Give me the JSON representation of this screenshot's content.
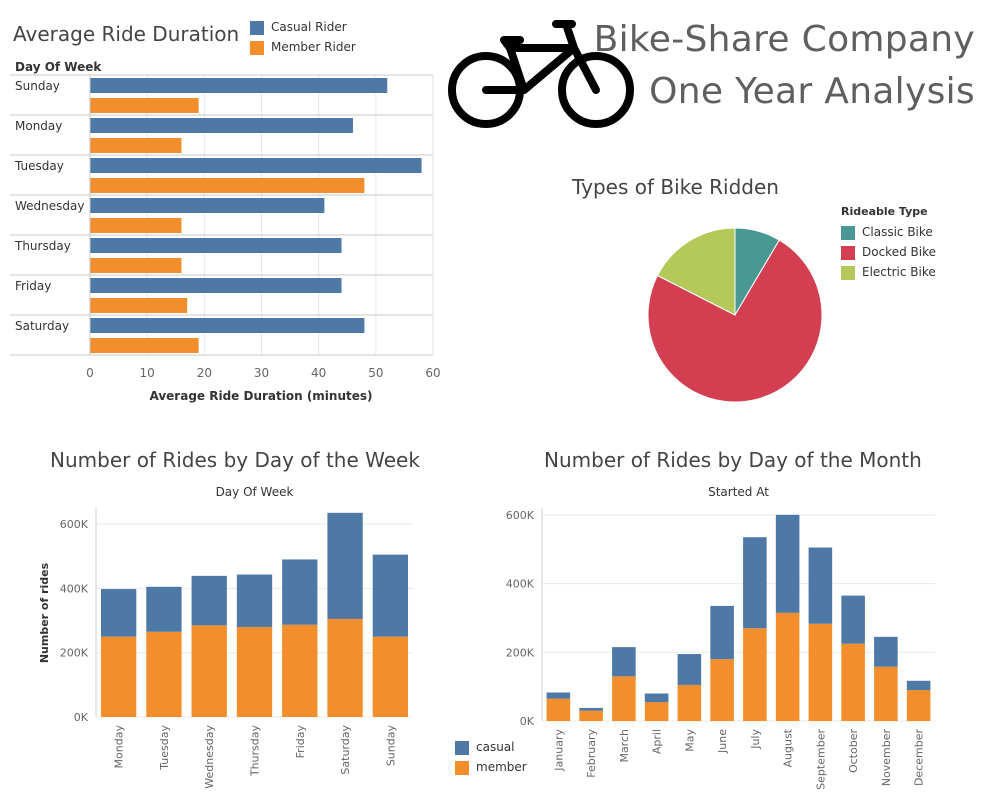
{
  "header": {
    "title_line1": "Bike-Share Company",
    "title_line2": "One Year Analysis"
  },
  "icons": {
    "logo": "bicycle-icon"
  },
  "colors": {
    "casual": "#4e79a7",
    "member": "#f28e2b",
    "classic": "#499894",
    "docked": "#d33f51",
    "electric": "#b5c95a",
    "grid": "#e8e8e8",
    "axis_text": "#666666"
  },
  "chart_data": [
    {
      "id": "avg_duration",
      "type": "bar",
      "orientation": "horizontal",
      "title": "Average Ride Duration",
      "row_header": "Day Of Week",
      "xlabel": "Average Ride Duration (minutes)",
      "categories": [
        "Sunday",
        "Monday",
        "Tuesday",
        "Wednesday",
        "Thursday",
        "Friday",
        "Saturday"
      ],
      "series": [
        {
          "name": "Casual Rider",
          "values": [
            52,
            46,
            58,
            41,
            44,
            44,
            48
          ]
        },
        {
          "name": "Member Rider",
          "values": [
            19,
            16,
            48,
            16,
            16,
            17,
            19
          ]
        }
      ],
      "xlim": [
        0,
        60
      ],
      "ticks": [
        0,
        10,
        20,
        30,
        40,
        50,
        60
      ],
      "legend_position": "top"
    },
    {
      "id": "bike_types",
      "type": "pie",
      "title": "Types of Bike Ridden",
      "legend_title": "Rideable Type",
      "labels": [
        "Classic Bike",
        "Docked Bike",
        "Electric Bike"
      ],
      "values": [
        8.5,
        74,
        17.5
      ],
      "legend_position": "right"
    },
    {
      "id": "rides_by_weekday",
      "type": "bar",
      "stacked": true,
      "title": "Number of Rides by Day of the Week",
      "top_label": "Day Of Week",
      "ylabel": "Number of rides",
      "categories": [
        "Monday",
        "Tuesday",
        "Wednesday",
        "Thursday",
        "Friday",
        "Saturday",
        "Sunday"
      ],
      "series": [
        {
          "name": "member",
          "values": [
            250000,
            265000,
            285000,
            280000,
            287000,
            305000,
            250000
          ]
        },
        {
          "name": "casual",
          "values": [
            148000,
            140000,
            154000,
            163000,
            203000,
            330000,
            255000
          ]
        }
      ],
      "ylim": [
        0,
        650000
      ],
      "ticks": [
        0,
        200000,
        400000,
        600000
      ],
      "tick_labels": [
        "0K",
        "200K",
        "400K",
        "600K"
      ]
    },
    {
      "id": "rides_by_month",
      "type": "bar",
      "stacked": true,
      "title": "Number of Rides by Day of the Month",
      "top_label": "Started At",
      "categories": [
        "January",
        "February",
        "March",
        "April",
        "May",
        "June",
        "July",
        "August",
        "September",
        "October",
        "November",
        "December"
      ],
      "series": [
        {
          "name": "member",
          "values": [
            65000,
            30000,
            130000,
            55000,
            105000,
            180000,
            270000,
            315000,
            283000,
            225000,
            158000,
            90000
          ]
        },
        {
          "name": "casual",
          "values": [
            18000,
            8000,
            85000,
            25000,
            90000,
            155000,
            265000,
            285000,
            222000,
            140000,
            87000,
            27000
          ]
        }
      ],
      "ylim": [
        0,
        620000
      ],
      "ticks": [
        0,
        200000,
        400000,
        600000
      ],
      "tick_labels": [
        "0K",
        "200K",
        "400K",
        "600K"
      ],
      "legend": [
        "casual",
        "member"
      ],
      "legend_position": "bottom-left"
    }
  ]
}
